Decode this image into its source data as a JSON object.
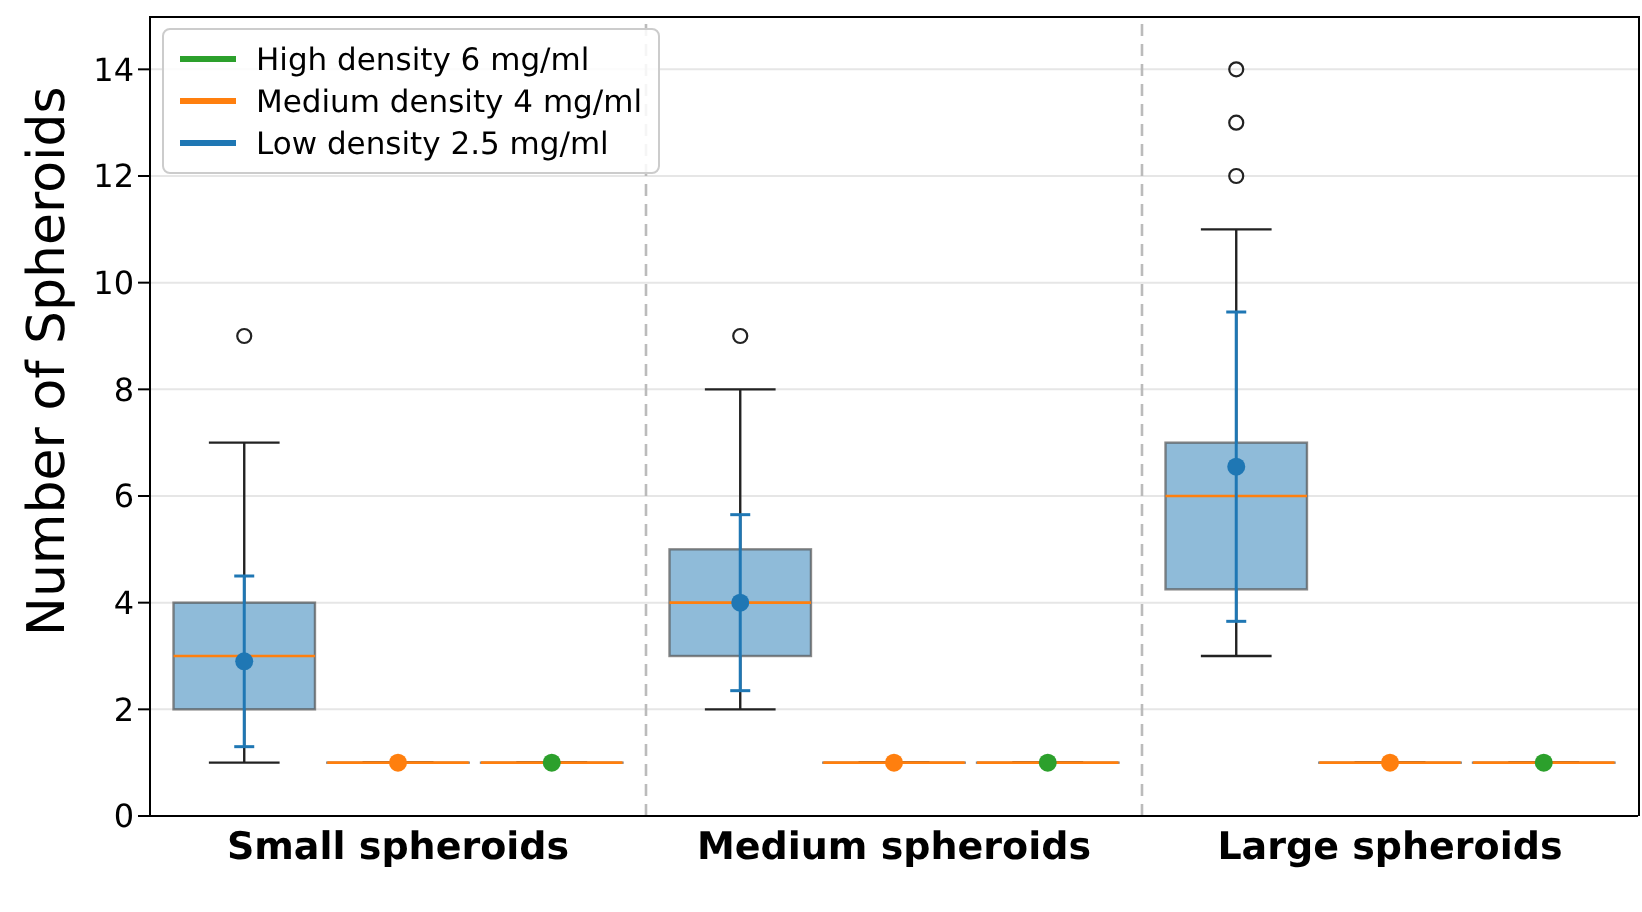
{
  "chart_data": {
    "type": "box",
    "ylabel": "Number of Spheroids",
    "categories": [
      "Small spheroids",
      "Medium spheroids",
      "Large spheroids"
    ],
    "series": [
      {
        "name": "Low density 2.5 mg/ml",
        "color": "#1f77b4",
        "boxes": [
          {
            "low": 1,
            "q1": 2,
            "median": 3,
            "q3": 4,
            "high": 7,
            "outliers": [
              9
            ]
          },
          {
            "low": 2,
            "q1": 3,
            "median": 4,
            "q3": 5,
            "high": 8,
            "outliers": [
              9
            ]
          },
          {
            "low": 3,
            "q1": 4.25,
            "median": 6,
            "q3": 7,
            "high": 11,
            "outliers": [
              12,
              13,
              14
            ]
          }
        ]
      },
      {
        "name": "Medium density 4 mg/ml",
        "color": "#ff7f0e",
        "boxes": [
          {
            "low": 1,
            "q1": 1,
            "median": 1,
            "q3": 1,
            "high": 1
          },
          {
            "low": 1,
            "q1": 1,
            "median": 1,
            "q3": 1,
            "high": 1
          },
          {
            "low": 1,
            "q1": 1,
            "median": 1,
            "q3": 1,
            "high": 1
          }
        ]
      },
      {
        "name": "High density 6 mg/ml",
        "color": "#2ca02c",
        "boxes": [
          {
            "low": 1,
            "q1": 1,
            "median": 1,
            "q3": 1,
            "high": 1
          },
          {
            "low": 1,
            "q1": 1,
            "median": 1,
            "q3": 1,
            "high": 1
          },
          {
            "low": 1,
            "q1": 1,
            "median": 1,
            "q3": 1,
            "high": 1
          }
        ]
      },
      {
        "type": "scatter",
        "color": "#1f77b4",
        "values": [
          2.9,
          4.0,
          6.55
        ],
        "errors": [
          [
            1.3,
            4.5
          ],
          [
            2.35,
            5.65
          ],
          [
            3.65,
            9.45
          ]
        ]
      },
      {
        "type": "scatter",
        "color": "#ff7f0e",
        "values": [
          1,
          1,
          1
        ]
      },
      {
        "type": "scatter",
        "color": "#2ca02c",
        "values": [
          1,
          1,
          1
        ]
      }
    ],
    "ylim": [
      0,
      15
    ],
    "yticks": [
      0,
      2,
      4,
      6,
      8,
      10,
      12,
      14
    ],
    "grid": "y",
    "legend": "top left",
    "marker": "circle"
  }
}
